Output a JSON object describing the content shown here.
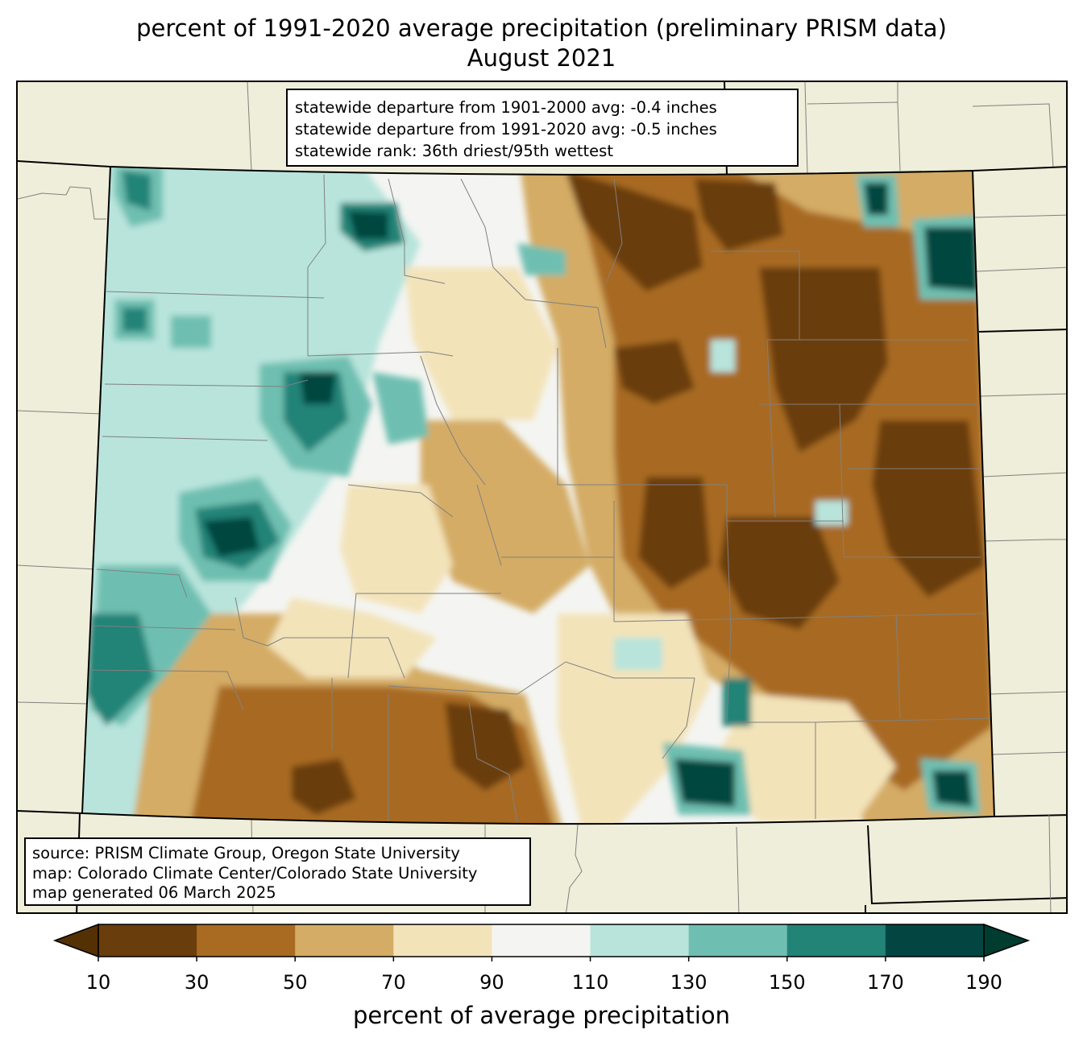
{
  "title": {
    "line1": "percent of 1991-2020 average precipitation (preliminary PRISM data)",
    "line2": "August 2021"
  },
  "stats": {
    "line1": "statewide departure from 1901-2000 avg: -0.4 inches",
    "line2": "statewide departure from 1991-2020 avg: -0.5 inches",
    "line3": "statewide rank: 36th driest/95th wettest"
  },
  "source": {
    "line1": "source: PRISM Climate Group, Oregon State University",
    "line2": "map: Colorado Climate Center/Colorado State University",
    "line3": "map generated 06 March 2025"
  },
  "colorbar": {
    "label": "percent of average precipitation",
    "ticks": [
      "10",
      "30",
      "50",
      "70",
      "90",
      "110",
      "130",
      "150",
      "170",
      "190"
    ],
    "colors": [
      "#6a3d0c",
      "#a86b21",
      "#d4ac65",
      "#f3e3b9",
      "#f4f5f2",
      "#b8e4dc",
      "#6ebfb1",
      "#228377",
      "#034641"
    ],
    "under_color": "#543005",
    "over_color": "#003c30"
  },
  "map_colors": {
    "background": "#efeeda",
    "county_lines": "#808080",
    "state_lines": "#000000"
  }
}
